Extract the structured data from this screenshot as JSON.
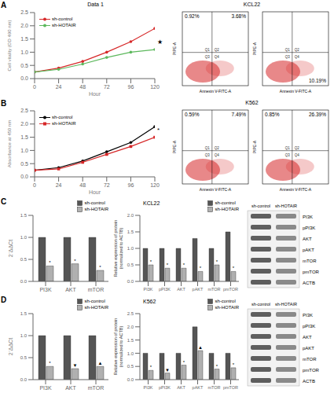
{
  "panel_labels": [
    "A",
    "B",
    "C",
    "D"
  ],
  "chart_data": [
    {
      "type": "line",
      "title": "Data 1",
      "x_label": "Hour",
      "y_label": "Cell vitality (OD 490 nm)",
      "x": [
        0,
        24,
        48,
        72,
        96,
        120
      ],
      "xlim": [
        0,
        120
      ],
      "xticks": [
        0,
        24,
        48,
        72,
        96,
        120
      ],
      "ylim": [
        0,
        2.5
      ],
      "yticks": [
        {
          "value": 0,
          "label": "0.0"
        },
        {
          "value": 0.5,
          "label": "0.5"
        },
        {
          "value": 1,
          "label": "1.0"
        },
        {
          "value": 1.5,
          "label": "1.5"
        },
        {
          "value": 2,
          "label": "2.0"
        },
        {
          "value": 2.5,
          "label": "2.5"
        }
      ],
      "legend": "upper left",
      "annotation": "★",
      "series": [
        {
          "name": "sh-control",
          "color": "#d62728",
          "marker": "circle",
          "values": [
            0.25,
            0.4,
            0.65,
            1.0,
            1.4,
            1.9
          ]
        },
        {
          "name": "sh-HOTAIR",
          "color": "#5cb85c",
          "marker": "circle",
          "values": [
            0.25,
            0.35,
            0.55,
            0.8,
            1.0,
            1.1
          ]
        }
      ]
    },
    {
      "type": "line",
      "x_label": "Hour",
      "y_label": "Absorbance at 450 nm",
      "x": [
        0,
        24,
        48,
        72,
        96,
        120
      ],
      "xlim": [
        0,
        120
      ],
      "xticks": [
        0,
        24,
        48,
        72,
        96,
        120
      ],
      "ylim": [
        0,
        2.5
      ],
      "yticks": [
        {
          "value": 0,
          "label": "0.0"
        },
        {
          "value": 0.5,
          "label": "0.5"
        },
        {
          "value": 1,
          "label": "1.0"
        },
        {
          "value": 1.5,
          "label": "1.5"
        },
        {
          "value": 2,
          "label": "2.0"
        },
        {
          "value": 2.5,
          "label": "2.5"
        }
      ],
      "legend": "upper left",
      "annotation": "*",
      "series": [
        {
          "name": "sh-control",
          "color": "#000000",
          "marker": "circle",
          "values": [
            0.25,
            0.35,
            0.6,
            0.95,
            1.3,
            1.9
          ]
        },
        {
          "name": "sh-HOTAIR",
          "color": "#d62728",
          "marker": "square",
          "values": [
            0.25,
            0.3,
            0.55,
            0.85,
            1.15,
            1.5
          ]
        }
      ]
    },
    {
      "type": "bar",
      "y_label": "2⁻ΔΔCt",
      "categories": [
        "PI3K",
        "AKT",
        "mTOR"
      ],
      "ylim": [
        0,
        1.5
      ],
      "yticks": [
        {
          "value": 0,
          "label": "0.0"
        },
        {
          "value": 0.5,
          "label": "0.5"
        },
        {
          "value": 1,
          "label": "1.0"
        },
        {
          "value": 1.5,
          "label": "1.5"
        }
      ],
      "legend": "upper right",
      "series": [
        {
          "name": "sh-control",
          "color": "#555555",
          "values": [
            1.0,
            1.0,
            1.0
          ]
        },
        {
          "name": "sh-HOTAIR",
          "color": "#b0b0b0",
          "values": [
            0.35,
            0.4,
            0.25
          ],
          "annotations": [
            "*",
            "*",
            "*"
          ]
        }
      ]
    },
    {
      "type": "bar",
      "title": "KCL22",
      "y_label": "Relative expression of protein (normalized to ACTB)",
      "categories": [
        "PI3K",
        "pPI3K",
        "AKT",
        "pAKT",
        "mTOR",
        "pmTOR"
      ],
      "ylim": [
        0,
        2
      ],
      "yticks": [
        {
          "value": 0,
          "label": "0.0"
        },
        {
          "value": 0.5,
          "label": "0.5"
        },
        {
          "value": 1,
          "label": "1.0"
        },
        {
          "value": 1.5,
          "label": "1.5"
        },
        {
          "value": 2,
          "label": "2.0"
        }
      ],
      "legend": "upper right",
      "series": [
        {
          "name": "sh-control",
          "color": "#555555",
          "values": [
            1.0,
            1.0,
            1.0,
            1.3,
            1.0,
            1.5
          ]
        },
        {
          "name": "sh-HOTAIR",
          "color": "#b0b0b0",
          "values": [
            0.5,
            0.4,
            0.4,
            0.3,
            0.5,
            0.3
          ],
          "annotations": [
            "*",
            "*",
            "*",
            "*",
            "*",
            "*"
          ]
        }
      ]
    },
    {
      "type": "bar",
      "y_label": "2⁻ΔΔCt",
      "categories": [
        "PI3K",
        "AKT",
        "mTOR"
      ],
      "ylim": [
        0,
        1.5
      ],
      "yticks": [
        {
          "value": 0,
          "label": "0.0"
        },
        {
          "value": 0.5,
          "label": "0.5"
        },
        {
          "value": 1,
          "label": "1.0"
        },
        {
          "value": 1.5,
          "label": "1.5"
        }
      ],
      "legend": "upper right",
      "series": [
        {
          "name": "sh-control",
          "color": "#555555",
          "values": [
            1.0,
            1.0,
            1.0
          ]
        },
        {
          "name": "sh-HOTAIR",
          "color": "#b0b0b0",
          "values": [
            0.3,
            0.25,
            0.3
          ],
          "annotations": [
            "*",
            "▼",
            "▲"
          ]
        }
      ]
    },
    {
      "type": "bar",
      "title": "K562",
      "y_label": "Relative expression of protein (normalized to ACTB)",
      "categories": [
        "PI3K",
        "pPI3K",
        "AKT",
        "pAKT",
        "mTOR",
        "pmTOR"
      ],
      "ylim": [
        0,
        2.5
      ],
      "yticks": [
        {
          "value": 0,
          "label": "0.0"
        },
        {
          "value": 0.5,
          "label": "0.5"
        },
        {
          "value": 1,
          "label": "1.0"
        },
        {
          "value": 1.5,
          "label": "1.5"
        },
        {
          "value": 2,
          "label": "2.0"
        },
        {
          "value": 2.5,
          "label": "2.5"
        }
      ],
      "legend": "upper right",
      "series": [
        {
          "name": "sh-control",
          "color": "#555555",
          "values": [
            1.0,
            1.0,
            1.0,
            2.0,
            1.0,
            1.0
          ]
        },
        {
          "name": "sh-HOTAIR",
          "color": "#b0b0b0",
          "values": [
            0.35,
            0.25,
            0.55,
            1.1,
            0.4,
            0.45
          ],
          "annotations": [
            "*",
            "▼",
            "*",
            "▲",
            "*",
            "*"
          ]
        }
      ]
    }
  ],
  "flow_cytometry": [
    {
      "title": "KCL22",
      "x_label": "Annexin V-FITC-A",
      "y_label": "PIPE-A",
      "quadrants": [
        "Q1",
        "Q2",
        "Q3",
        "Q4"
      ],
      "plots": [
        {
          "Q1": "0.92%",
          "Q2": "3.68%"
        },
        {
          "Q4": "10.19%"
        }
      ]
    },
    {
      "title": "K562",
      "x_label": "Annexin V-FITC-A",
      "y_label": "PIPE-A",
      "quadrants": [
        "Q1",
        "Q2",
        "Q3",
        "Q4"
      ],
      "plots": [
        {
          "Q1": "0.59%",
          "Q2": "7.49%"
        },
        {
          "Q1": "0.85%",
          "Q2": "26.39%"
        }
      ]
    }
  ],
  "western_blots": [
    {
      "columns": [
        "sh-control",
        "sh-HOTAIR"
      ],
      "rows": [
        "PI3K",
        "pPI3K",
        "AKT",
        "pAKT",
        "mTOR",
        "pmTOR",
        "ACTB"
      ]
    },
    {
      "columns": [
        "sh-control",
        "sh-HOTAIR"
      ],
      "rows": [
        "PI3K",
        "pPI3K",
        "AKT",
        "pAKT",
        "mTOR",
        "pmTOR",
        "ACTB"
      ]
    }
  ]
}
